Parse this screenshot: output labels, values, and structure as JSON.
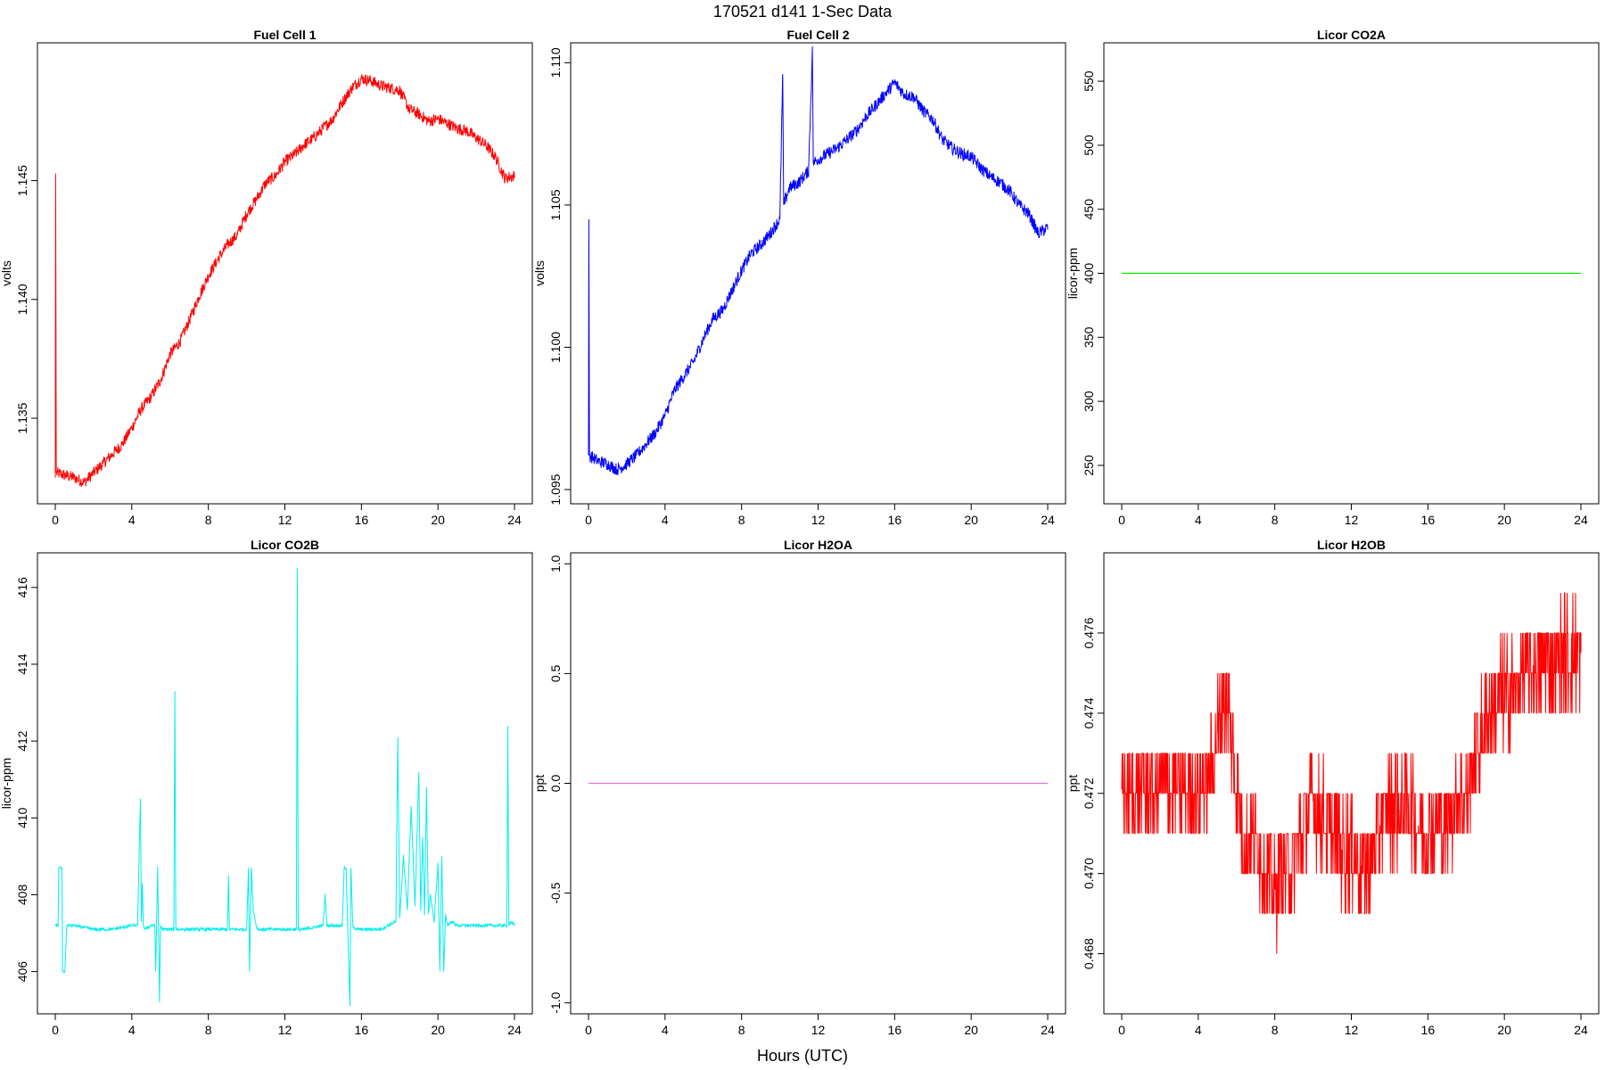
{
  "header": {
    "title": "170521   d141   1-Sec Data",
    "xlabel": "Hours (UTC)"
  },
  "chart_data": [
    {
      "type": "line",
      "title": "Fuel Cell 1",
      "ylabel": "volts",
      "xlabel": "",
      "color": "#ff0000",
      "xlim": [
        0,
        24
      ],
      "ylim": [
        1.1314,
        1.1508
      ],
      "xticks": [
        "0",
        "4",
        "8",
        "12",
        "16",
        "20",
        "24"
      ],
      "yticks": [
        "1.135",
        "1.140",
        "1.145"
      ],
      "x": [
        0,
        0.02,
        0.05,
        0.5,
        1,
        1.5,
        2,
        2.5,
        3,
        3.5,
        4,
        4.5,
        5,
        5.5,
        6,
        6.5,
        7,
        7.5,
        8,
        8.5,
        9,
        9.5,
        10,
        10.5,
        11,
        11.5,
        12,
        12.5,
        13,
        13.5,
        14,
        14.5,
        15,
        15.5,
        16,
        16.5,
        17,
        17.5,
        18,
        18.5,
        19,
        19.5,
        20,
        20.5,
        21,
        21.5,
        22,
        22.5,
        23,
        23.5,
        24
      ],
      "y": [
        1.1325,
        1.1453,
        1.1327,
        1.1326,
        1.1325,
        1.1323,
        1.1327,
        1.1331,
        1.1335,
        1.1339,
        1.1346,
        1.1354,
        1.1359,
        1.1366,
        1.1377,
        1.1382,
        1.1391,
        1.1401,
        1.141,
        1.1417,
        1.1423,
        1.1427,
        1.1436,
        1.1442,
        1.1449,
        1.1452,
        1.1458,
        1.1461,
        1.1465,
        1.1468,
        1.1472,
        1.1476,
        1.1483,
        1.1489,
        1.1493,
        1.1492,
        1.149,
        1.1489,
        1.1488,
        1.148,
        1.1478,
        1.1475,
        1.1476,
        1.1474,
        1.1472,
        1.1471,
        1.1468,
        1.1465,
        1.146,
        1.1451,
        1.1452
      ],
      "noise": 0.00025
    },
    {
      "type": "line",
      "title": "Fuel Cell 2",
      "ylabel": "volts",
      "xlabel": "",
      "color": "#0000ff",
      "xlim": [
        0,
        24
      ],
      "ylim": [
        1.0945,
        1.1107
      ],
      "xticks": [
        "0",
        "4",
        "8",
        "12",
        "16",
        "20",
        "24"
      ],
      "yticks": [
        "1.095",
        "1.100",
        "1.105",
        "1.110"
      ],
      "x": [
        0,
        0.02,
        0.05,
        0.5,
        1,
        1.5,
        2,
        2.5,
        3,
        3.5,
        4,
        4.5,
        5,
        5.5,
        6,
        6.5,
        7,
        7.5,
        8,
        8.5,
        9,
        9.5,
        10,
        10.15,
        10.2,
        10.5,
        11,
        11.5,
        11.7,
        11.75,
        12,
        12.5,
        13,
        13.5,
        14,
        14.5,
        15,
        15.5,
        16,
        16.5,
        17,
        17.5,
        18,
        18.5,
        19,
        19.5,
        20,
        20.5,
        21,
        21.5,
        22,
        22.5,
        23,
        23.5,
        24
      ],
      "y": [
        1.0962,
        1.1045,
        1.0962,
        1.096,
        1.0959,
        1.0957,
        1.0959,
        1.0962,
        1.0966,
        1.097,
        1.0976,
        1.0985,
        1.099,
        1.0995,
        1.1003,
        1.101,
        1.1013,
        1.102,
        1.1027,
        1.1033,
        1.1036,
        1.104,
        1.1045,
        1.1096,
        1.105,
        1.1056,
        1.1058,
        1.1062,
        1.1104,
        1.1065,
        1.1066,
        1.1068,
        1.107,
        1.1073,
        1.1076,
        1.1081,
        1.1085,
        1.1089,
        1.1093,
        1.1089,
        1.1088,
        1.1083,
        1.108,
        1.1073,
        1.107,
        1.1068,
        1.1067,
        1.1063,
        1.106,
        1.1058,
        1.1055,
        1.105,
        1.1047,
        1.104,
        1.1042
      ],
      "noise": 0.00022
    },
    {
      "type": "line",
      "title": "Licor CO2A",
      "ylabel": "licor-ppm",
      "xlabel": "",
      "color": "#00ee00",
      "xlim": [
        0,
        24
      ],
      "ylim": [
        220,
        580
      ],
      "xticks": [
        "0",
        "4",
        "8",
        "12",
        "16",
        "20",
        "24"
      ],
      "yticks": [
        "250",
        "300",
        "350",
        "400",
        "450",
        "500",
        "550"
      ],
      "x": [
        0,
        24
      ],
      "y": [
        400,
        400
      ],
      "noise": 0
    },
    {
      "type": "line",
      "title": "Licor CO2B",
      "ylabel": "licor-ppm",
      "xlabel": "",
      "color": "#00eeee",
      "xlim": [
        0,
        24
      ],
      "ylim": [
        404.9,
        416.9
      ],
      "xticks": [
        "0",
        "4",
        "8",
        "12",
        "16",
        "20",
        "24"
      ],
      "yticks": [
        "406",
        "408",
        "410",
        "412",
        "414",
        "416"
      ],
      "x": [
        0,
        0.15,
        0.18,
        0.25,
        0.35,
        0.38,
        0.5,
        0.6,
        1,
        2,
        3,
        4,
        4.3,
        4.45,
        4.5,
        4.55,
        4.6,
        4.7,
        5,
        5.2,
        5.25,
        5.35,
        5.45,
        5.5,
        5.6,
        6,
        6.2,
        6.25,
        6.3,
        6.4,
        7,
        8,
        9,
        9.05,
        9.1,
        10,
        10.1,
        10.15,
        10.25,
        10.35,
        10.5,
        10.6,
        11,
        12,
        12.6,
        12.65,
        12.7,
        13,
        14,
        14.1,
        14.2,
        15,
        15.1,
        15.2,
        15.4,
        15.45,
        15.55,
        15.7,
        16,
        17,
        17.8,
        17.9,
        18,
        18.2,
        18.4,
        18.6,
        18.8,
        19,
        19.1,
        19.2,
        19.3,
        19.4,
        19.5,
        19.6,
        19.8,
        20,
        20.1,
        20.2,
        20.3,
        20.4,
        20.5,
        20.7,
        21,
        22,
        23,
        23.6,
        23.65,
        23.7,
        23.8,
        24
      ],
      "y": [
        407.2,
        407.2,
        408.7,
        408.7,
        408.7,
        406.0,
        406.0,
        407.2,
        407.2,
        407.1,
        407.1,
        407.2,
        407.2,
        410.5,
        407.3,
        408.3,
        407.2,
        407.1,
        407.2,
        407.2,
        406.0,
        408.7,
        405.2,
        407.2,
        407.1,
        407.1,
        407.1,
        413.3,
        407.1,
        407.1,
        407.1,
        407.1,
        407.1,
        408.5,
        407.1,
        407.1,
        408.7,
        406.0,
        408.7,
        407.6,
        407.2,
        407.1,
        407.1,
        407.1,
        407.1,
        416.5,
        407.1,
        407.1,
        407.2,
        408.0,
        407.2,
        407.2,
        408.7,
        408.7,
        405.1,
        408.7,
        407.2,
        407.1,
        407.1,
        407.1,
        407.3,
        412.1,
        407.4,
        409.0,
        407.6,
        410.3,
        407.7,
        411.2,
        407.6,
        409.5,
        407.5,
        410.8,
        407.5,
        408.0,
        407.3,
        408.8,
        406.0,
        409.0,
        406.0,
        407.5,
        407.2,
        407.3,
        407.2,
        407.2,
        407.2,
        407.2,
        412.4,
        407.2,
        407.3,
        407.2
      ],
      "noise": 0.04
    },
    {
      "type": "line",
      "title": "Licor H2OA",
      "ylabel": "ppt",
      "xlabel": "",
      "color": "#dd77dd",
      "xlim": [
        0,
        24
      ],
      "ylim": [
        -1.05,
        1.05
      ],
      "xticks": [
        "0",
        "4",
        "8",
        "12",
        "16",
        "20",
        "24"
      ],
      "yticks": [
        "-1.0",
        "-0.5",
        "0.0",
        "0.5",
        "1.0"
      ],
      "x": [
        0,
        24
      ],
      "y": [
        0,
        0
      ],
      "noise": 0
    },
    {
      "type": "line",
      "title": "Licor H2OB",
      "ylabel": "ppt",
      "xlabel": "",
      "color": "#ff0000",
      "xlim": [
        0,
        24
      ],
      "ylim": [
        0.4665,
        0.478
      ],
      "xticks": [
        "0",
        "4",
        "8",
        "12",
        "16",
        "20",
        "24"
      ],
      "yticks": [
        "0.468",
        "0.470",
        "0.472",
        "0.474",
        "0.476"
      ],
      "x": [
        0,
        0.5,
        1,
        1.5,
        2,
        2.5,
        3,
        3.5,
        4,
        4.5,
        5,
        5.3,
        5.6,
        6,
        6.5,
        7,
        7.5,
        8,
        8.5,
        9,
        9.5,
        10,
        10.5,
        11,
        11.5,
        12,
        12.5,
        13,
        13.5,
        14,
        14.5,
        15,
        15.5,
        16,
        16.5,
        17,
        17.5,
        18,
        18.5,
        19,
        19.5,
        20,
        20.5,
        21,
        21.5,
        22,
        22.5,
        23,
        23.5,
        24
      ],
      "y": [
        0.4721,
        0.472,
        0.4721,
        0.4721,
        0.4721,
        0.4722,
        0.4722,
        0.4721,
        0.4721,
        0.4723,
        0.4735,
        0.4745,
        0.474,
        0.472,
        0.4705,
        0.471,
        0.47,
        0.4696,
        0.47,
        0.4703,
        0.4712,
        0.4718,
        0.4714,
        0.471,
        0.4706,
        0.4706,
        0.4702,
        0.4702,
        0.4712,
        0.4716,
        0.4716,
        0.4718,
        0.4712,
        0.471,
        0.4712,
        0.4712,
        0.4718,
        0.472,
        0.473,
        0.4738,
        0.4742,
        0.4745,
        0.4745,
        0.4748,
        0.4752,
        0.4752,
        0.4752,
        0.4755,
        0.4755,
        0.4755
      ],
      "noise": 0.00125,
      "step": 0.001
    }
  ]
}
